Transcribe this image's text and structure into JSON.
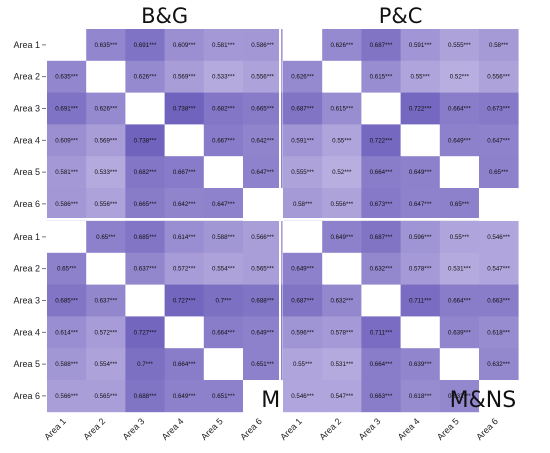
{
  "chart_data": {
    "type": "heatmap",
    "areas": [
      "Area 1",
      "Area 2",
      "Area 3",
      "Area 4",
      "Area 5",
      "Area 6"
    ],
    "color_low": "#b9aee0",
    "color_high": "#6f62bd",
    "panels": [
      {
        "name": "B&G",
        "label_style": "top-title",
        "values": [
          [
            "",
            "0.635***",
            "0.691***",
            "0.609***",
            "0.581***",
            "0.586***"
          ],
          [
            "0.635***",
            "",
            "0.626***",
            "0.569***",
            "0.533***",
            "0.556***"
          ],
          [
            "0.691***",
            "0.626***",
            "",
            "0.738***",
            "0.682***",
            "0.665***"
          ],
          [
            "0.609***",
            "0.569***",
            "0.738***",
            "",
            "0.667***",
            "0.642***"
          ],
          [
            "0.581***",
            "0.533***",
            "0.682***",
            "0.667***",
            "",
            "0.647***"
          ],
          [
            "0.586***",
            "0.556***",
            "0.665***",
            "0.642***",
            "0.647***",
            ""
          ]
        ]
      },
      {
        "name": "P&C",
        "label_style": "top-title",
        "values": [
          [
            "",
            "0.626***",
            "0.687***",
            "0.591***",
            "0.555***",
            "0.58***"
          ],
          [
            "0.626***",
            "",
            "0.615***",
            "0.55***",
            "0.52***",
            "0.556***"
          ],
          [
            "0.687***",
            "0.615***",
            "",
            "0.722***",
            "0.664***",
            "0.673***"
          ],
          [
            "0.591***",
            "0.55***",
            "0.722***",
            "",
            "0.649***",
            "0.647***"
          ],
          [
            "0.555***",
            "0.52***",
            "0.664***",
            "0.649***",
            "",
            "0.65***"
          ],
          [
            "0.58***",
            "0.556***",
            "0.673***",
            "0.647***",
            "0.65***",
            ""
          ]
        ]
      },
      {
        "name": "M",
        "label_style": "corner",
        "values": [
          [
            "",
            "0.65***",
            "0.685***",
            "0.614***",
            "0.588***",
            "0.566***"
          ],
          [
            "0.65***",
            "",
            "0.637***",
            "0.572***",
            "0.554***",
            "0.565***"
          ],
          [
            "0.685***",
            "0.637***",
            "",
            "0.727***",
            "0.7***",
            "0.688***"
          ],
          [
            "0.614***",
            "0.572***",
            "0.727***",
            "",
            "0.664***",
            "0.649***"
          ],
          [
            "0.588***",
            "0.554***",
            "0.7***",
            "0.664***",
            "",
            "0.651***"
          ],
          [
            "0.566***",
            "0.565***",
            "0.688***",
            "0.649***",
            "0.651***",
            ""
          ]
        ]
      },
      {
        "name": "M&NS",
        "label_style": "corner",
        "values": [
          [
            "",
            "0.649***",
            "0.687***",
            "0.596***",
            "0.55***",
            "0.546***"
          ],
          [
            "0.649***",
            "",
            "0.632***",
            "0.578***",
            "0.531***",
            "0.547***"
          ],
          [
            "0.687***",
            "0.632***",
            "",
            "0.711***",
            "0.664***",
            "0.663***"
          ],
          [
            "0.596***",
            "0.578***",
            "0.711***",
            "",
            "0.639***",
            "0.618***"
          ],
          [
            "0.55***",
            "0.531***",
            "0.664***",
            "0.639***",
            "",
            "0.632***"
          ],
          [
            "0.546***",
            "0.547***",
            "0.663***",
            "0.618***",
            "0.632***",
            ""
          ]
        ]
      }
    ]
  }
}
